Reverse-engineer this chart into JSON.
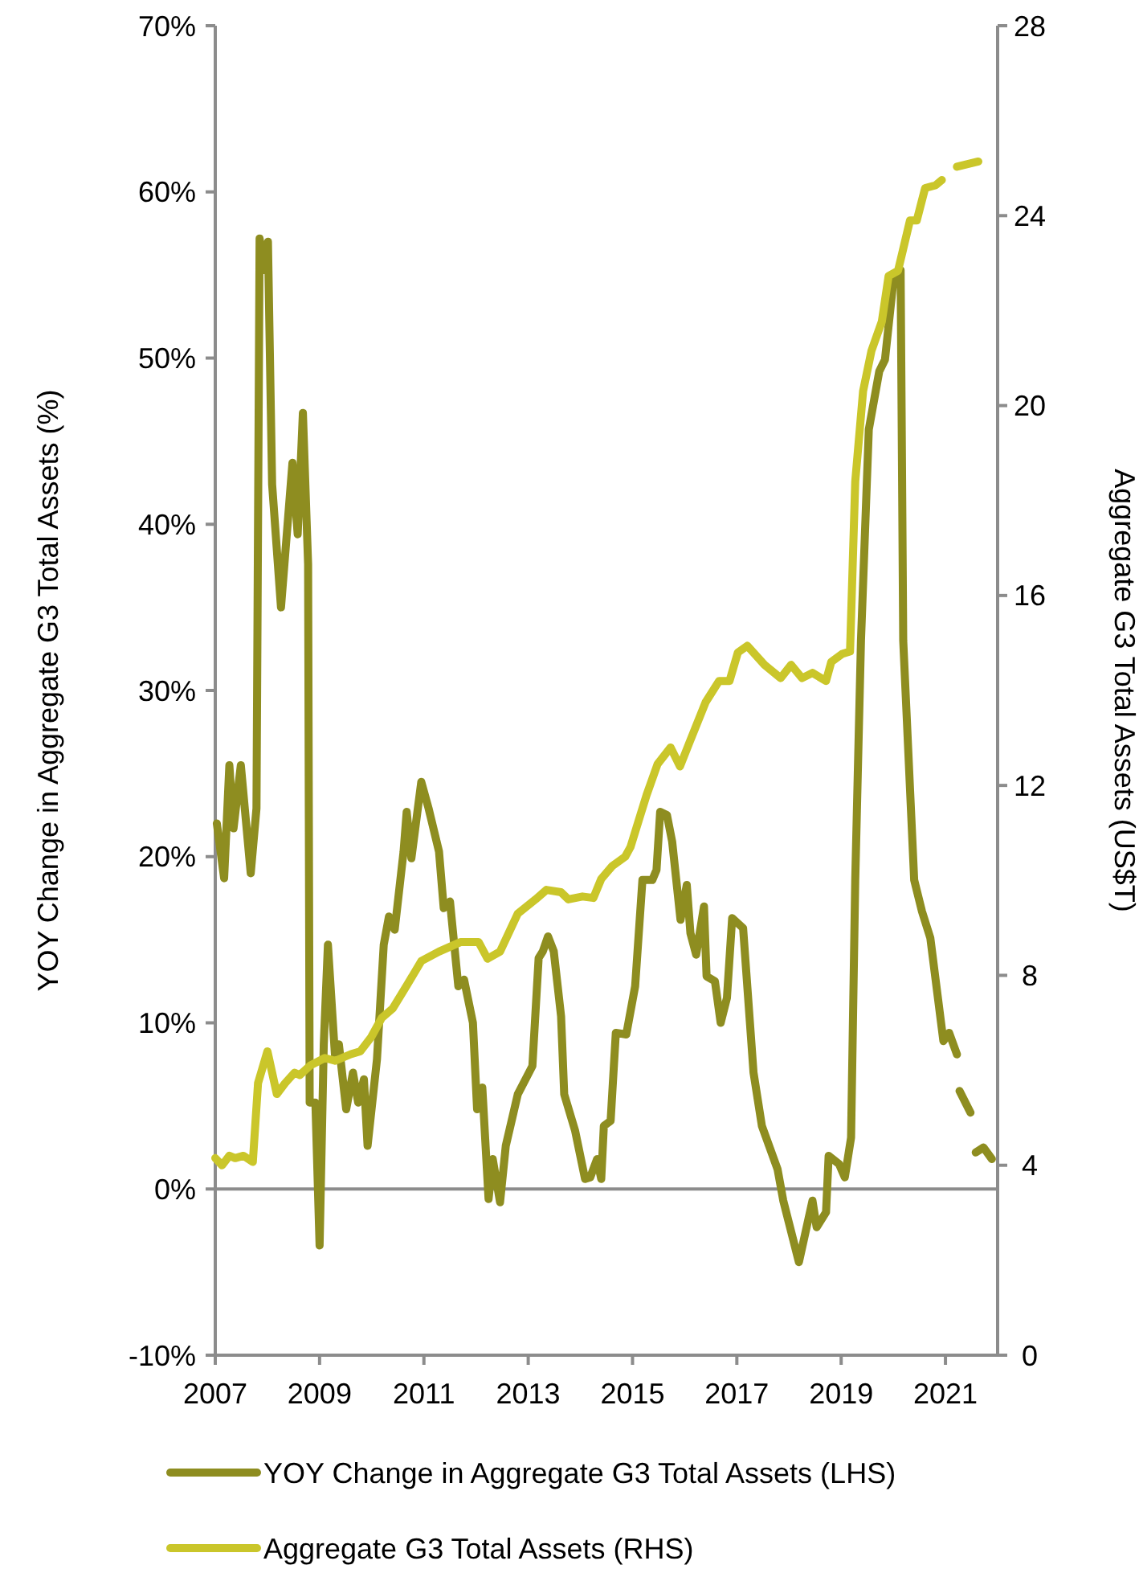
{
  "chart_data": {
    "type": "line",
    "ylabel": "YOY Change in Aggregate G3 Total Assets (%)",
    "y2label": "Aggregate G3 Total Assets (US$T)",
    "xlim": [
      2007,
      2022
    ],
    "xticks": [
      2007,
      2009,
      2011,
      2013,
      2015,
      2017,
      2019,
      2021
    ],
    "ylim": [
      -10,
      70
    ],
    "yticks": [
      {
        "value": -10,
        "label": "-10%"
      },
      {
        "value": 0,
        "label": "0%"
      },
      {
        "value": 10,
        "label": "10%"
      },
      {
        "value": 20,
        "label": "20%"
      },
      {
        "value": 30,
        "label": "30%"
      },
      {
        "value": 40,
        "label": "40%"
      },
      {
        "value": 50,
        "label": "50%"
      },
      {
        "value": 60,
        "label": "60%"
      },
      {
        "value": 70,
        "label": "70%"
      }
    ],
    "y2lim": [
      0,
      28
    ],
    "y2ticks": [
      0,
      4,
      8,
      12,
      16,
      20,
      24,
      28
    ],
    "ref_lines": [
      {
        "axis": "y",
        "value": 0,
        "color": "#8c8c8c"
      }
    ],
    "grid": false,
    "legend": "bottom",
    "line_style": "solid",
    "marker": "none",
    "series": [
      {
        "name": "YOY Change in Aggregate G3 Total Assets (LHS)",
        "color": "#8e8d20",
        "x": [
          2007.03,
          2007.17,
          2007.27,
          2007.35,
          2007.49,
          2007.68,
          2007.79,
          2007.85,
          2007.93,
          2008.01,
          2008.09,
          2008.26,
          2008.48,
          2008.58,
          2008.68,
          2008.78,
          2008.81,
          2008.92,
          2009.0,
          2009.08,
          2009.16,
          2009.3,
          2009.37,
          2009.51,
          2009.64,
          2009.74,
          2009.85,
          2009.92,
          2010.1,
          2010.23,
          2010.33,
          2010.44,
          2010.61,
          2010.67,
          2010.76,
          2010.95,
          2011.09,
          2011.29,
          2011.38,
          2011.5,
          2011.66,
          2011.77,
          2011.94,
          2012.02,
          2012.12,
          2012.24,
          2012.32,
          2012.46,
          2012.57,
          2012.8,
          2013.08,
          2013.2,
          2013.28,
          2013.38,
          2013.49,
          2013.63,
          2013.69,
          2013.9,
          2014.09,
          2014.19,
          2014.32,
          2014.4,
          2014.45,
          2014.58,
          2014.68,
          2014.88,
          2015.05,
          2015.19,
          2015.38,
          2015.46,
          2015.53,
          2015.66,
          2015.76,
          2015.92,
          2016.04,
          2016.11,
          2016.22,
          2016.37,
          2016.42,
          2016.58,
          2016.69,
          2016.81,
          2016.91,
          2017.12,
          2017.32,
          2017.48,
          2017.78,
          2017.89,
          2018.19,
          2018.45,
          2018.53,
          2018.71,
          2018.76,
          2018.96,
          2019.07,
          2019.19,
          2019.27,
          2019.38,
          2019.53,
          2019.73,
          2019.84,
          2020.01,
          2020.14,
          2020.19,
          2020.4,
          2020.55,
          2020.71,
          2020.96,
          2021.07,
          2021.22,
          2021.25,
          2021.27,
          2021.48,
          2021.52,
          2021.58,
          2021.73,
          2021.89
        ],
        "values": [
          22.0,
          18.7,
          25.5,
          21.7,
          25.5,
          19.0,
          22.9,
          57.2,
          55.3,
          57.0,
          42.4,
          35.0,
          43.7,
          39.4,
          46.7,
          37.6,
          5.2,
          5.2,
          -3.4,
          8.7,
          14.7,
          7.8,
          8.7,
          4.8,
          7.0,
          5.2,
          6.6,
          2.6,
          7.8,
          14.7,
          16.4,
          15.6,
          20.3,
          22.7,
          19.9,
          24.5,
          22.9,
          20.3,
          16.9,
          17.3,
          12.2,
          12.6,
          10.0,
          4.8,
          6.1,
          -0.6,
          1.8,
          -0.8,
          2.6,
          5.7,
          7.4,
          13.9,
          14.3,
          15.2,
          14.3,
          10.4,
          5.7,
          3.5,
          0.6,
          0.7,
          1.8,
          0.6,
          3.8,
          4.1,
          9.4,
          9.3,
          12.2,
          18.6,
          18.6,
          19.2,
          22.7,
          22.5,
          20.9,
          16.2,
          18.3,
          15.4,
          14.1,
          17.0,
          12.8,
          12.5,
          10.0,
          11.5,
          16.3,
          15.7,
          7.0,
          3.8,
          1.2,
          -0.7,
          -4.4,
          -0.7,
          -2.3,
          -1.4,
          2.0,
          1.5,
          0.7,
          3.1,
          18.6,
          33.0,
          45.7,
          49.2,
          49.9,
          54.9,
          55.3,
          33.0,
          18.6,
          16.7,
          15.1,
          8.9,
          9.4,
          8.1,
          null,
          5.9,
          4.6,
          null,
          2.2,
          2.5,
          1.8
        ]
      },
      {
        "name": "Aggregate G3 Total Assets (RHS)",
        "color": "#cac62a",
        "axis": "y2",
        "x": [
          2007.0,
          2007.13,
          2007.27,
          2007.38,
          2007.54,
          2007.72,
          2007.82,
          2008.0,
          2008.18,
          2008.34,
          2008.52,
          2008.62,
          2008.82,
          2009.1,
          2009.3,
          2009.6,
          2009.78,
          2009.99,
          2010.19,
          2010.4,
          2010.68,
          2010.95,
          2011.29,
          2011.7,
          2012.05,
          2012.22,
          2012.46,
          2012.8,
          2013.14,
          2013.35,
          2013.63,
          2013.77,
          2014.04,
          2014.25,
          2014.4,
          2014.61,
          2014.86,
          2014.96,
          2015.27,
          2015.48,
          2015.73,
          2015.91,
          2016.09,
          2016.4,
          2016.66,
          2016.86,
          2017.02,
          2017.2,
          2017.53,
          2017.84,
          2018.04,
          2018.25,
          2018.45,
          2018.71,
          2018.81,
          2019.02,
          2019.17,
          2019.27,
          2019.42,
          2019.58,
          2019.78,
          2019.91,
          2020.09,
          2020.32,
          2020.45,
          2020.61,
          2020.81,
          2020.93,
          2021.0,
          2021.22,
          2021.63
        ],
        "values": [
          4.15,
          4.0,
          4.2,
          4.15,
          4.2,
          4.07,
          5.73,
          6.4,
          5.5,
          5.73,
          5.95,
          5.9,
          6.1,
          6.26,
          6.2,
          6.34,
          6.4,
          6.7,
          7.1,
          7.3,
          7.8,
          8.3,
          8.5,
          8.7,
          8.7,
          8.35,
          8.5,
          9.3,
          9.6,
          9.8,
          9.75,
          9.6,
          9.66,
          9.63,
          10.03,
          10.3,
          10.5,
          10.7,
          11.8,
          12.45,
          12.8,
          12.4,
          12.9,
          13.75,
          14.2,
          14.2,
          14.8,
          14.94,
          14.54,
          14.26,
          14.54,
          14.26,
          14.37,
          14.2,
          14.6,
          14.77,
          14.82,
          18.4,
          20.3,
          21.15,
          21.77,
          22.73,
          22.84,
          23.9,
          23.9,
          24.58,
          24.64,
          24.75,
          null,
          25.03,
          25.14
        ]
      }
    ]
  }
}
